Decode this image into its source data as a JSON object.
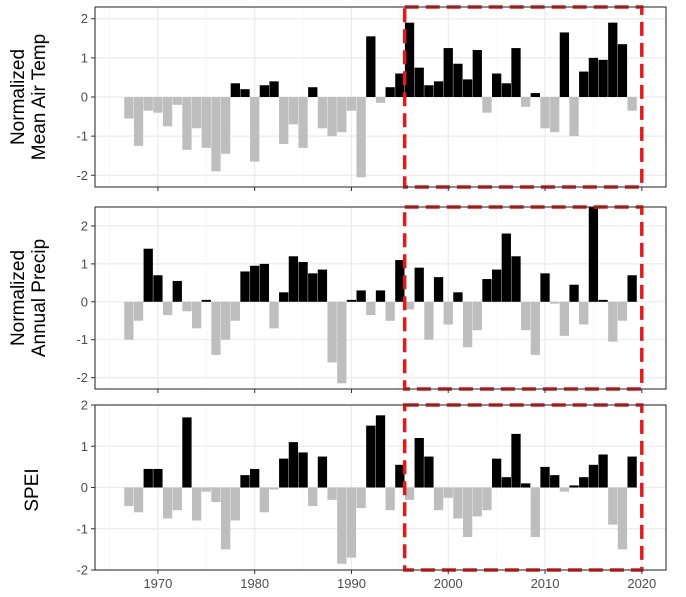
{
  "chart_data": [
    {
      "type": "bar",
      "ylabel": [
        "Normalized",
        "Mean Air Temp"
      ],
      "ylim": [
        -2.3,
        2.3
      ],
      "yticks": [
        -2,
        -1,
        0,
        1,
        2
      ],
      "x": [
        1967,
        1968,
        1969,
        1970,
        1971,
        1972,
        1973,
        1974,
        1975,
        1976,
        1977,
        1978,
        1979,
        1980,
        1981,
        1982,
        1983,
        1984,
        1985,
        1986,
        1987,
        1988,
        1989,
        1990,
        1991,
        1992,
        1993,
        1994,
        1995,
        1996,
        1997,
        1998,
        1999,
        2000,
        2001,
        2002,
        2003,
        2004,
        2005,
        2006,
        2007,
        2008,
        2009,
        2010,
        2011,
        2012,
        2013,
        2014,
        2015,
        2016,
        2017,
        2018,
        2019
      ],
      "values": [
        -0.55,
        -1.25,
        -0.35,
        -0.4,
        -0.75,
        -0.2,
        -1.35,
        -0.8,
        -1.3,
        -1.9,
        -1.45,
        0.35,
        0.2,
        -1.65,
        0.3,
        0.4,
        -1.2,
        -0.7,
        -1.3,
        0.25,
        -0.8,
        -1.0,
        -0.9,
        -0.35,
        -2.05,
        1.55,
        -0.15,
        0.25,
        0.6,
        1.9,
        0.75,
        0.3,
        0.4,
        1.25,
        0.85,
        0.45,
        1.2,
        -0.4,
        0.6,
        0.35,
        1.25,
        -0.25,
        0.1,
        -0.8,
        -0.9,
        1.65,
        -1.0,
        0.65,
        1.0,
        0.95,
        1.9,
        1.35,
        -0.35
      ],
      "highlight": {
        "x_start": 1995.5,
        "x_end": 2020,
        "y_start": -2.3,
        "y_end": 2.3
      }
    },
    {
      "type": "bar",
      "ylabel": [
        "Normalized",
        "Annual Precip"
      ],
      "ylim": [
        -2.3,
        2.5
      ],
      "yticks": [
        -2,
        -1,
        0,
        1,
        2
      ],
      "x": [
        1967,
        1968,
        1969,
        1970,
        1971,
        1972,
        1973,
        1974,
        1975,
        1976,
        1977,
        1978,
        1979,
        1980,
        1981,
        1982,
        1983,
        1984,
        1985,
        1986,
        1987,
        1988,
        1989,
        1990,
        1991,
        1992,
        1993,
        1994,
        1995,
        1996,
        1997,
        1998,
        1999,
        2000,
        2001,
        2002,
        2003,
        2004,
        2005,
        2006,
        2007,
        2008,
        2009,
        2010,
        2011,
        2012,
        2013,
        2014,
        2015,
        2016,
        2017,
        2018,
        2019
      ],
      "values": [
        -1.0,
        -0.5,
        1.4,
        0.7,
        -0.35,
        0.55,
        -0.25,
        -0.7,
        0.05,
        -1.4,
        -1.0,
        -0.5,
        0.8,
        0.95,
        1.0,
        -0.7,
        0.25,
        1.2,
        1.05,
        0.75,
        0.85,
        -1.6,
        -2.15,
        0.05,
        0.3,
        -0.35,
        0.3,
        -0.5,
        1.1,
        -0.2,
        0.9,
        -1.0,
        0.65,
        -0.6,
        0.25,
        -1.2,
        -0.75,
        0.6,
        0.85,
        1.8,
        1.2,
        -0.75,
        -1.4,
        0.75,
        -0.05,
        -0.9,
        0.45,
        -0.6,
        2.5,
        0.05,
        -1.05,
        -0.5,
        0.7
      ],
      "highlight": {
        "x_start": 1995.5,
        "x_end": 2020,
        "y_start": -2.3,
        "y_end": 2.5
      }
    },
    {
      "type": "bar",
      "ylabel": [
        "SPEI"
      ],
      "ylim": [
        -2.0,
        2.0
      ],
      "yticks": [
        -2,
        -1,
        0,
        1,
        2
      ],
      "x": [
        1967,
        1968,
        1969,
        1970,
        1971,
        1972,
        1973,
        1974,
        1975,
        1976,
        1977,
        1978,
        1979,
        1980,
        1981,
        1982,
        1983,
        1984,
        1985,
        1986,
        1987,
        1988,
        1989,
        1990,
        1991,
        1992,
        1993,
        1994,
        1995,
        1996,
        1997,
        1998,
        1999,
        2000,
        2001,
        2002,
        2003,
        2004,
        2005,
        2006,
        2007,
        2008,
        2009,
        2010,
        2011,
        2012,
        2013,
        2014,
        2015,
        2016,
        2017,
        2018,
        2019
      ],
      "values": [
        -0.45,
        -0.6,
        0.45,
        0.45,
        -0.75,
        -0.55,
        1.7,
        -0.8,
        -0.1,
        -0.35,
        -1.5,
        -0.8,
        0.3,
        0.45,
        -0.6,
        -0.05,
        0.7,
        1.1,
        0.85,
        -0.45,
        0.75,
        -0.3,
        -1.85,
        -1.7,
        -0.5,
        1.5,
        1.75,
        -0.55,
        0.55,
        -0.3,
        1.2,
        0.75,
        -0.55,
        -0.25,
        -0.75,
        -1.2,
        -0.7,
        -0.55,
        0.7,
        0.25,
        1.3,
        0.1,
        -1.2,
        0.5,
        0.3,
        -0.1,
        0.05,
        0.25,
        0.55,
        0.8,
        -0.9,
        -1.5,
        0.75
      ],
      "highlight": {
        "x_start": 1995.5,
        "x_end": 2020,
        "y_start": -2.0,
        "y_end": 2.0
      }
    }
  ],
  "x_axis": {
    "xlim": [
      1963.5,
      2022.5
    ],
    "tick_labels": [
      "1970",
      "1980",
      "1990",
      "2000",
      "2010",
      "2020"
    ],
    "tick_values": [
      1970,
      1980,
      1990,
      2000,
      2010,
      2020
    ]
  },
  "colors": {
    "positive": "#000000",
    "negative": "#bebebe",
    "highlight": "#e31a1c",
    "grid_major": "#ebebeb",
    "grid_minor": "#f5f5f5",
    "panel_border": "#333333"
  }
}
